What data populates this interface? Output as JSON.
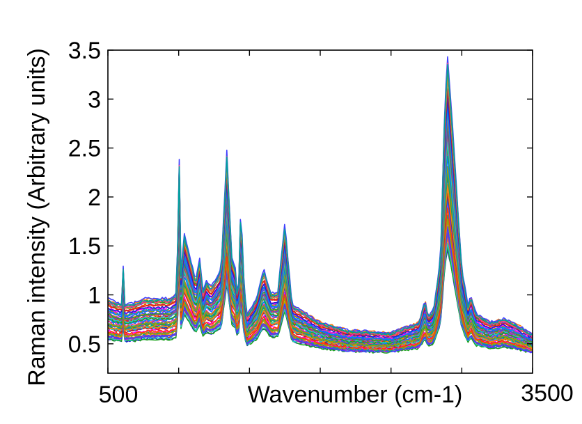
{
  "chart_data": {
    "type": "line",
    "title": "",
    "xlabel": "Wavenumber (cm-1)",
    "ylabel": "Raman intensity (Arbitrary units)",
    "xlim": [
      500,
      3500
    ],
    "ylim": [
      0.2,
      3.5
    ],
    "xticks": [
      "500",
      "3500"
    ],
    "yticks": [
      "0.5",
      "1",
      "1.5",
      "2",
      "2.5",
      "3",
      "3.5"
    ],
    "ytick_values": [
      0.5,
      1,
      1.5,
      2,
      2.5,
      3,
      3.5
    ],
    "grid": false,
    "legend": "none",
    "series_count": 60,
    "representative_spectrum": {
      "x": [
        500,
        550,
        600,
        610,
        620,
        640,
        700,
        760,
        860,
        940,
        990,
        1000,
        1010,
        1040,
        1120,
        1150,
        1170,
        1195,
        1230,
        1300,
        1340,
        1375,
        1400,
        1420,
        1440,
        1455,
        1480,
        1550,
        1600,
        1650,
        1700,
        1750,
        1800,
        2000,
        2200,
        2500,
        2700,
        2740,
        2760,
        2800,
        2850,
        2880,
        2900,
        2935,
        3000,
        3050,
        3060,
        3100,
        3200,
        3300,
        3400,
        3500
      ],
      "y": [
        0.95,
        0.92,
        0.9,
        1.3,
        0.9,
        0.9,
        0.92,
        0.95,
        0.95,
        0.95,
        1.0,
        2.8,
        1.1,
        1.5,
        1.1,
        1.3,
        1.0,
        1.1,
        1.05,
        1.2,
        2.2,
        1.3,
        1.2,
        0.9,
        1.8,
        1.2,
        0.8,
        0.95,
        1.2,
        1.0,
        1.0,
        1.6,
        0.9,
        0.75,
        0.68,
        0.66,
        0.75,
        0.95,
        0.8,
        0.85,
        1.3,
        2.6,
        3.0,
        2.4,
        1.2,
        0.85,
        1.0,
        0.82,
        0.75,
        0.78,
        0.72,
        0.65
      ]
    },
    "series_colors": [
      "#1f1fd6",
      "#d61f1f",
      "#1fa51f",
      "#1fc8c8",
      "#c81fc8",
      "#c8a51f",
      "#ff7f0e",
      "#7f3fbf",
      "#2ca02c",
      "#3f3fff",
      "#ff3f7f",
      "#00a0a0",
      "#a0a000",
      "#ff00ff",
      "#0080ff",
      "#ff4000"
    ]
  }
}
